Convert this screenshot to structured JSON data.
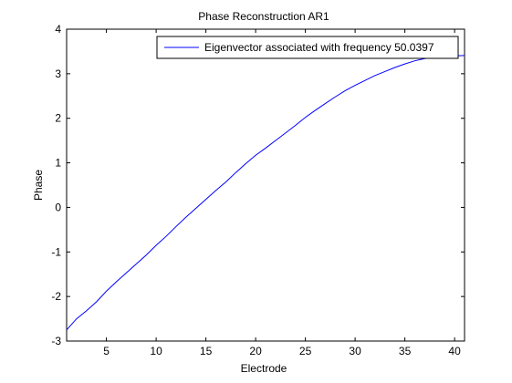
{
  "chart_data": {
    "type": "line",
    "title": "Phase Reconstruction AR1",
    "xlabel": "Electrode",
    "ylabel": "Phase",
    "xlim": [
      1,
      41
    ],
    "ylim": [
      -3,
      4
    ],
    "xticks": [
      5,
      10,
      15,
      20,
      25,
      30,
      35,
      40
    ],
    "yticks": [
      -3,
      -2,
      -1,
      0,
      1,
      2,
      3,
      4
    ],
    "grid": false,
    "legend_position": "top-right",
    "series": [
      {
        "name": "Eigenvector associated with frequency 50.0397",
        "color": "#0000ff",
        "x": [
          1,
          2,
          3,
          4,
          5,
          6,
          7,
          8,
          9,
          10,
          11,
          12,
          13,
          14,
          15,
          16,
          17,
          18,
          19,
          20,
          21,
          22,
          23,
          24,
          25,
          26,
          27,
          28,
          29,
          30,
          31,
          32,
          33,
          34,
          35,
          36,
          37,
          38,
          39,
          40,
          41
        ],
        "y": [
          -2.75,
          -2.5,
          -2.32,
          -2.12,
          -1.88,
          -1.67,
          -1.47,
          -1.27,
          -1.07,
          -0.85,
          -0.65,
          -0.43,
          -0.22,
          -0.02,
          0.18,
          0.38,
          0.57,
          0.78,
          0.98,
          1.17,
          1.33,
          1.5,
          1.67,
          1.84,
          2.02,
          2.18,
          2.33,
          2.48,
          2.62,
          2.74,
          2.85,
          2.96,
          3.05,
          3.14,
          3.22,
          3.29,
          3.34,
          3.37,
          3.4,
          3.4,
          3.41
        ]
      }
    ]
  }
}
